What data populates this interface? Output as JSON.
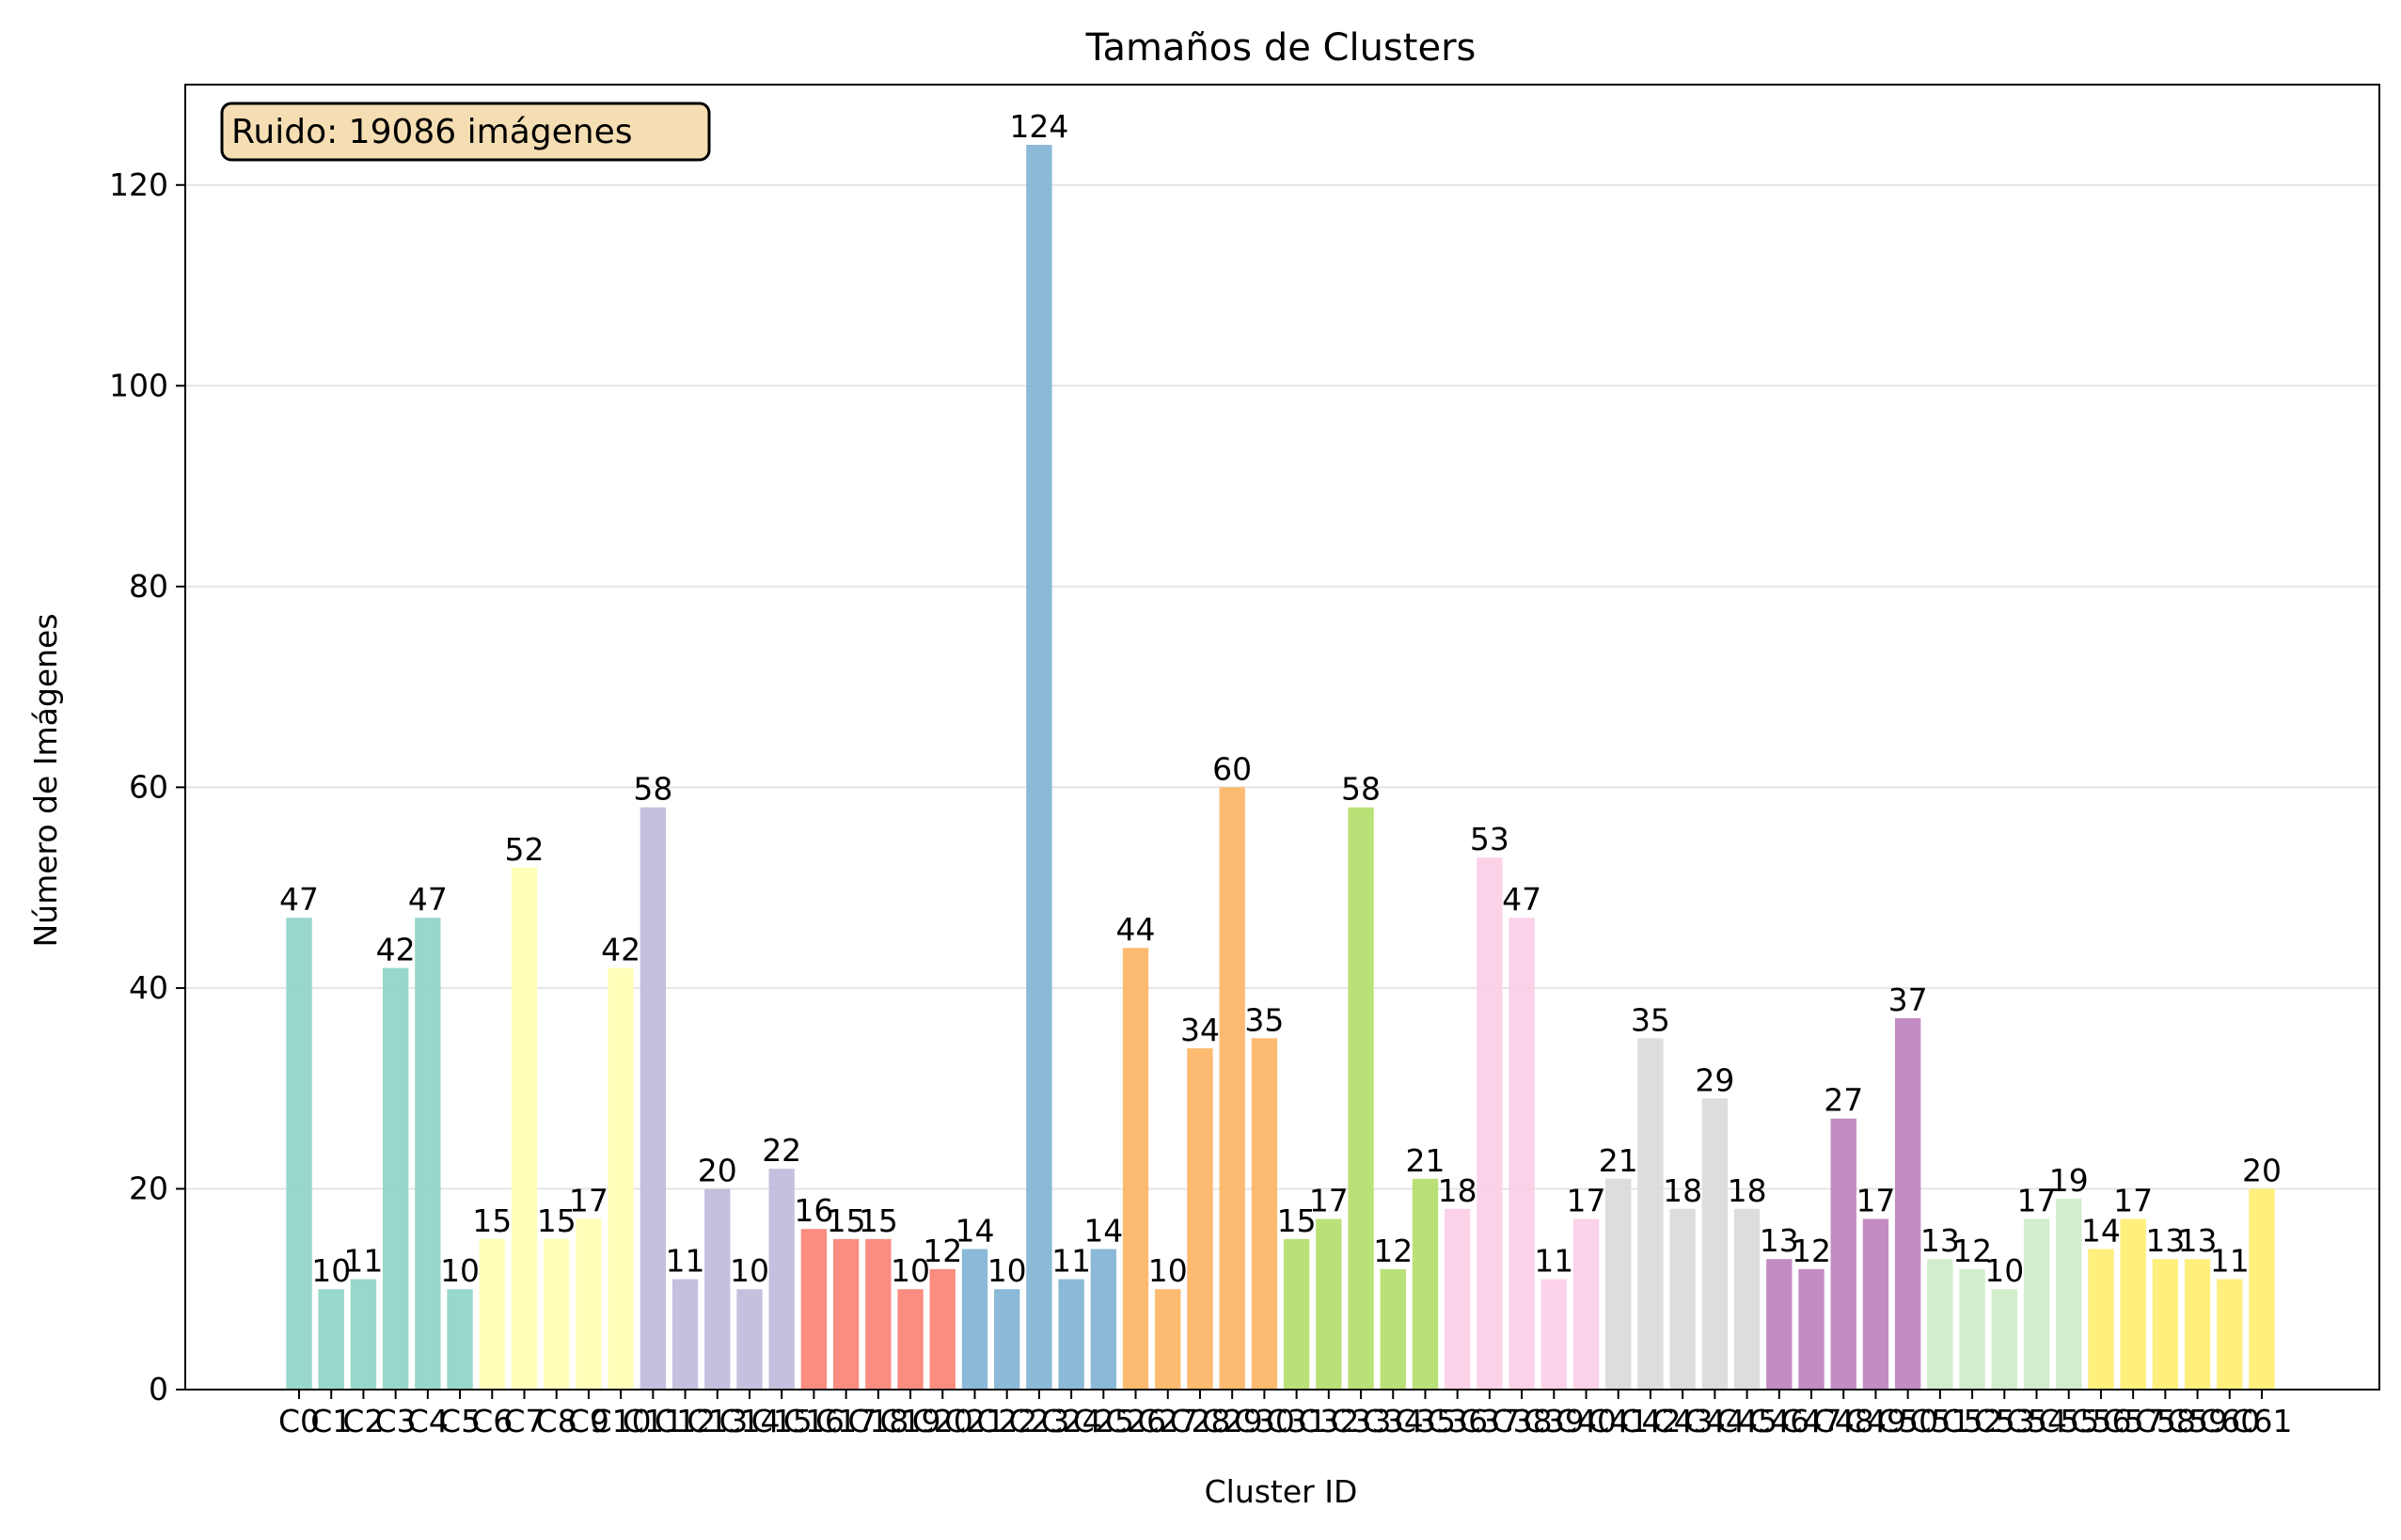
{
  "chart_data": {
    "type": "bar",
    "title": "Tamaños de Clusters",
    "xlabel": "Cluster ID",
    "ylabel": "Número de Imágenes",
    "ylim": [
      0,
      130
    ],
    "yticks": [
      0,
      20,
      40,
      60,
      80,
      100,
      120
    ],
    "grid": "horizontal",
    "annotation": "Ruido: 19086 imágenes",
    "categories": [
      "C0",
      "C1",
      "C2",
      "C3",
      "C4",
      "C5",
      "C6",
      "C7",
      "C8",
      "C9",
      "C10",
      "C11",
      "C12",
      "C13",
      "C14",
      "C15",
      "C16",
      "C17",
      "C18",
      "C19",
      "C20",
      "C21",
      "C22",
      "C23",
      "C24",
      "C25",
      "C26",
      "C27",
      "C28",
      "C29",
      "C30",
      "C31",
      "C32",
      "C33",
      "C34",
      "C35",
      "C36",
      "C37",
      "C38",
      "C39",
      "C40",
      "C41",
      "C42",
      "C43",
      "C44",
      "C45",
      "C46",
      "C47",
      "C48",
      "C49",
      "C50",
      "C51",
      "C52",
      "C53",
      "C54",
      "C55",
      "C56",
      "C57",
      "C58",
      "C59",
      "C60",
      "C61"
    ],
    "values": [
      47,
      10,
      11,
      42,
      47,
      10,
      15,
      52,
      15,
      17,
      42,
      58,
      11,
      20,
      10,
      22,
      16,
      15,
      15,
      10,
      12,
      14,
      10,
      124,
      11,
      14,
      44,
      10,
      34,
      60,
      35,
      15,
      17,
      58,
      12,
      21,
      18,
      53,
      47,
      11,
      17,
      21,
      35,
      18,
      29,
      18,
      13,
      12,
      27,
      17,
      37,
      13,
      12,
      10,
      17,
      19,
      14,
      17,
      13,
      13,
      11,
      20
    ],
    "colors": [
      "#8dd3c7",
      "#8dd3c7",
      "#8dd3c7",
      "#8dd3c7",
      "#8dd3c7",
      "#8dd3c7",
      "#ffffb3",
      "#ffffb3",
      "#ffffb3",
      "#ffffb3",
      "#ffffb3",
      "#bebada",
      "#bebada",
      "#bebada",
      "#bebada",
      "#bebada",
      "#fb8072",
      "#fb8072",
      "#fb8072",
      "#fb8072",
      "#fb8072",
      "#80b1d3",
      "#80b1d3",
      "#80b1d3",
      "#80b1d3",
      "#80b1d3",
      "#fdb462",
      "#fdb462",
      "#fdb462",
      "#fdb462",
      "#fdb462",
      "#b3de69",
      "#b3de69",
      "#b3de69",
      "#b3de69",
      "#b3de69",
      "#fccde5",
      "#fccde5",
      "#fccde5",
      "#fccde5",
      "#fccde5",
      "#d9d9d9",
      "#d9d9d9",
      "#d9d9d9",
      "#d9d9d9",
      "#d9d9d9",
      "#bc80bd",
      "#bc80bd",
      "#bc80bd",
      "#bc80bd",
      "#bc80bd",
      "#ccebc5",
      "#ccebc5",
      "#ccebc5",
      "#ccebc5",
      "#ccebc5",
      "#ffed6f",
      "#ffed6f",
      "#ffed6f",
      "#ffed6f",
      "#ffed6f",
      "#ffed6f"
    ],
    "annotation_bg": "#f5deb3"
  }
}
